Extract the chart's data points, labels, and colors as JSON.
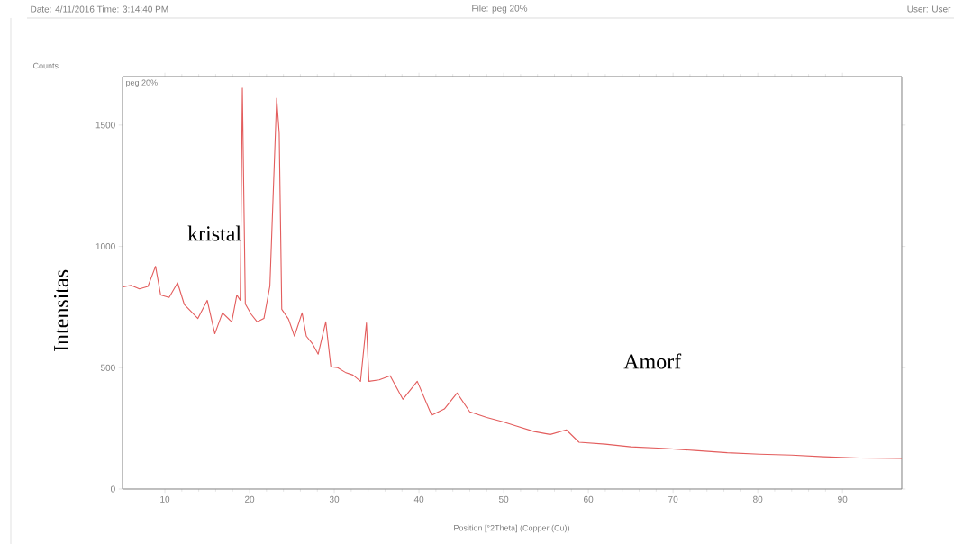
{
  "chart_data": {
    "type": "line",
    "title": "File: peg 20%",
    "xlabel": "Position [°2Theta] (Copper (Cu))",
    "ylabel": "Intensitas",
    "annotations": [
      "Date: 4/11/2016 Time: 3:14:40 PM",
      "User: User",
      "Counts",
      "peg 20%",
      "kristal",
      "Amorf"
    ],
    "x": [
      5.1,
      6,
      7,
      8,
      8.9,
      9.5,
      10.5,
      11.5,
      12.3,
      13.9,
      15,
      15.9,
      16.8,
      17.9,
      18.5,
      18.9,
      19.15,
      19.5,
      20.2,
      20.9,
      21.7,
      22.4,
      23.2,
      23.5,
      23.8,
      24.6,
      25.3,
      26.2,
      26.7,
      27.4,
      28.1,
      29,
      29.6,
      30.4,
      31.3,
      32.2,
      33.1,
      33.8,
      34.1,
      35.3,
      36.6,
      38.1,
      39.8,
      41.5,
      43,
      44.5,
      46,
      48,
      49.8,
      51.5,
      53.6,
      55.5,
      57.4,
      58.9,
      62,
      65,
      68.8,
      72.6,
      76.4,
      80.2,
      84,
      87.8,
      92,
      97
    ],
    "series": [
      {
        "color": "#e35d5d",
        "values": [
          833,
          840,
          825,
          835,
          918,
          800,
          790,
          850,
          760,
          703,
          778,
          640,
          726,
          689,
          800,
          778,
          1652,
          763,
          720,
          689,
          703,
          837,
          1611,
          1467,
          741,
          700,
          630,
          726,
          630,
          600,
          556,
          689,
          504,
          500,
          481,
          470,
          444,
          685,
          444,
          450,
          467,
          370,
          444,
          304,
          330,
          396,
          318,
          295,
          278,
          260,
          237,
          225,
          244,
          193,
          185,
          174,
          168,
          159,
          150,
          144,
          140,
          133,
          128,
          126
        ]
      }
    ],
    "xlim": [
      5,
      97
    ],
    "ylim": [
      0,
      1700
    ],
    "xticks": [
      10,
      20,
      30,
      40,
      50,
      60,
      70,
      80,
      90
    ],
    "yticks": [
      0,
      500,
      1000,
      1500
    ],
    "grid": false,
    "marker": "none",
    "line_style": "solid"
  }
}
